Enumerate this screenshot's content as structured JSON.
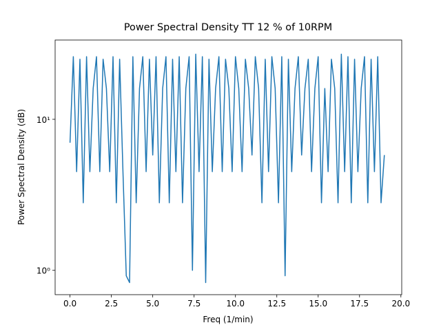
{
  "chart_data": {
    "type": "line",
    "title": "Power Spectral Density TT 12 % of 10RPM",
    "xlabel": "Freq (1/min)",
    "ylabel": "Power Spectral Density (dB)",
    "log_y": true,
    "color": "#1f77b4",
    "xlim": [
      -0.9,
      20.05
    ],
    "ylim": [
      0.69,
      33.5
    ],
    "xticks": [
      {
        "value": 0,
        "label": "0.0"
      },
      2.5,
      {
        "value": 5,
        "label": "5.0"
      },
      7.5,
      {
        "value": 10,
        "label": "10.0"
      },
      12.5,
      {
        "value": 15,
        "label": "15.0"
      },
      17.5,
      {
        "value": 20,
        "label": "20.0"
      }
    ],
    "yticks": [
      {
        "value": 1,
        "label": "10⁰"
      },
      {
        "value": 10,
        "label": "10¹"
      }
    ],
    "x": [
      0.0,
      0.2,
      0.4,
      0.6,
      0.8,
      1.0,
      1.2,
      1.4,
      1.6,
      1.8,
      2.0,
      2.2,
      2.4,
      2.6,
      2.8,
      3.0,
      3.2,
      3.4,
      3.6,
      3.8,
      4.0,
      4.2,
      4.4,
      4.6,
      4.8,
      5.0,
      5.2,
      5.4,
      5.6,
      5.8,
      6.0,
      6.2,
      6.4,
      6.6,
      6.8,
      7.0,
      7.2,
      7.4,
      7.6,
      7.8,
      8.0,
      8.2,
      8.4,
      8.6,
      8.8,
      9.0,
      9.2,
      9.4,
      9.6,
      9.8,
      10.0,
      10.2,
      10.4,
      10.6,
      10.8,
      11.0,
      11.2,
      11.4,
      11.6,
      11.8,
      12.0,
      12.2,
      12.4,
      12.6,
      12.8,
      13.0,
      13.2,
      13.4,
      13.6,
      13.8,
      14.0,
      14.2,
      14.4,
      14.6,
      14.8,
      15.0,
      15.2,
      15.4,
      15.6,
      15.8,
      16.0,
      16.2,
      16.4,
      16.6,
      16.8,
      17.0,
      17.2,
      17.4,
      17.6,
      17.8,
      18.0,
      18.2,
      18.4,
      18.6,
      18.8,
      19.0
    ],
    "values": [
      7,
      26,
      4.5,
      25,
      2.8,
      26,
      4.5,
      16,
      26,
      4.5,
      25,
      16,
      4.5,
      26,
      2.8,
      25,
      4.5,
      0.92,
      0.83,
      26,
      2.8,
      16,
      26,
      4.5,
      25,
      5.8,
      26,
      2.8,
      16,
      26,
      2.8,
      25,
      4.5,
      26,
      2.8,
      16,
      26,
      1.0,
      27,
      4.5,
      26,
      0.83,
      25,
      4.5,
      16,
      26,
      4.5,
      25,
      16,
      4.5,
      26,
      16,
      4.5,
      25,
      16,
      5.8,
      26,
      16,
      2.8,
      25,
      4.5,
      26,
      16,
      2.8,
      26,
      0.92,
      25,
      4.5,
      16,
      26,
      5.8,
      16,
      25,
      4.5,
      16,
      26,
      2.8,
      16,
      4.5,
      25,
      16,
      2.8,
      27,
      4.5,
      26,
      2.8,
      25,
      4.5,
      16,
      26,
      2.8,
      25,
      4.5,
      26,
      2.8,
      5.8
    ]
  }
}
